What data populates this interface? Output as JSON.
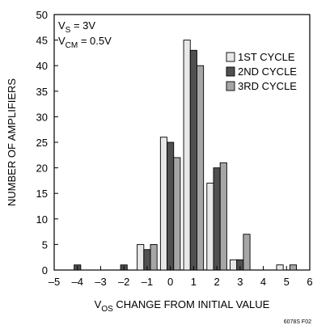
{
  "chart_data": {
    "type": "bar",
    "xlabel_main": "V",
    "xlabel_sub": "OS",
    "xlabel_rest": " CHANGE FROM INITIAL VALUE",
    "ylabel": "NUMBER OF AMPLIFIERS",
    "xlim": [
      -5,
      6
    ],
    "ylim": [
      0,
      50
    ],
    "x_ticks": [
      -5,
      -4,
      -3,
      -2,
      -1,
      0,
      1,
      2,
      3,
      4,
      5,
      6
    ],
    "x_tick_labels": [
      "–5",
      "–4",
      "–3",
      "–2",
      "–1",
      "0",
      "1",
      "2",
      "3",
      "4",
      "5",
      "6"
    ],
    "y_ticks": [
      0,
      5,
      10,
      15,
      20,
      25,
      30,
      35,
      40,
      45,
      50
    ],
    "y_tick_labels": [
      "0",
      "5",
      "10",
      "15",
      "20",
      "25",
      "30",
      "35",
      "40",
      "45",
      "50"
    ],
    "grid": false,
    "legend_position": "top-right",
    "annotations": [
      {
        "main": "V",
        "sub": "S",
        "rest": " = 3V"
      },
      {
        "main": "V",
        "sub": "CM",
        "rest": " = 0.5V"
      }
    ],
    "figure_id": "6078S F02",
    "series": [
      {
        "name": "1ST CYCLE",
        "color": "#e8e8e8",
        "x": [
          -1,
          0,
          1,
          2,
          3,
          5
        ],
        "values": [
          5,
          26,
          45,
          17,
          2,
          1
        ]
      },
      {
        "name": "2ND CYCLE",
        "color": "#505050",
        "x": [
          -4,
          -2,
          -1,
          0,
          1,
          2,
          3
        ],
        "values": [
          1,
          1,
          4,
          25,
          43,
          20,
          2
        ]
      },
      {
        "name": "3RD CYCLE",
        "color": "#a6a6a6",
        "x": [
          -1,
          0,
          1,
          2,
          3,
          5
        ],
        "values": [
          5,
          22,
          40,
          21,
          7,
          1
        ]
      }
    ]
  }
}
